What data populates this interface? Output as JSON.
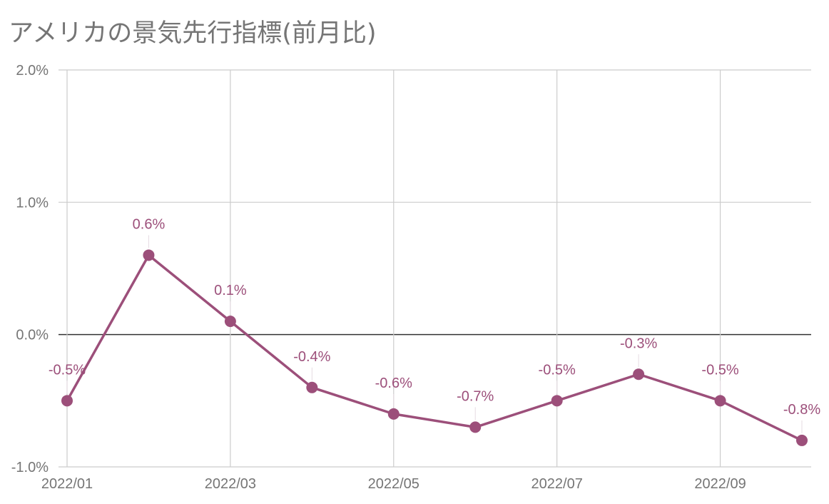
{
  "chart_data": {
    "type": "line",
    "title": "アメリカの景気先行指標(前月比)",
    "x": [
      "2022/01",
      "2022/02",
      "2022/03",
      "2022/04",
      "2022/05",
      "2022/06",
      "2022/07",
      "2022/08",
      "2022/09",
      "2022/10"
    ],
    "x_tick_labels": [
      "2022/01",
      "2022/03",
      "2022/05",
      "2022/07",
      "2022/09"
    ],
    "y_tick_labels": [
      "2.0%",
      "1.0%",
      "0.0%",
      "-1.0%"
    ],
    "ylim": [
      -1.0,
      2.0
    ],
    "y_ticks": [
      2.0,
      1.0,
      0.0,
      -1.0
    ],
    "y_unit": "%",
    "grid": true,
    "series": [
      {
        "values": [
          -0.5,
          0.6,
          0.1,
          -0.4,
          -0.6,
          -0.7,
          -0.5,
          -0.3,
          -0.5,
          -0.8
        ],
        "data_labels": [
          "-0.5%",
          "0.6%",
          "0.1%",
          "-0.4%",
          "-0.6%",
          "-0.7%",
          "-0.5%",
          "-0.3%",
          "-0.5%",
          "-0.8%"
        ]
      }
    ],
    "colors": {
      "series": "#9c4f7a",
      "grid": "#cccccc",
      "zero_line": "#333333",
      "text": "#757575"
    }
  }
}
